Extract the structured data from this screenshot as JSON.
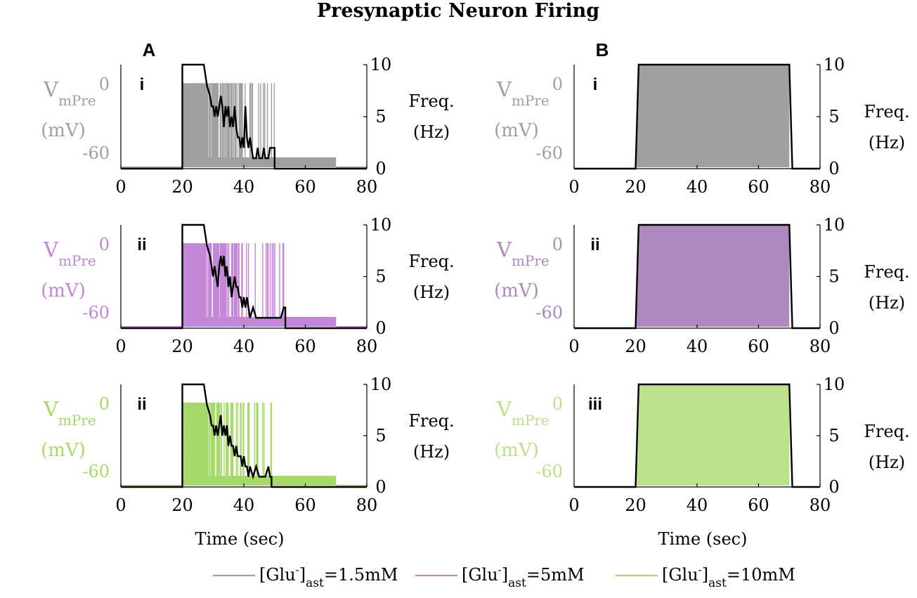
{
  "title": "Presynaptic Neuron Firing",
  "columns": [
    {
      "label": "A"
    },
    {
      "label": "B"
    }
  ],
  "colors": {
    "gray": "#a0a0a0",
    "purple": "#c486d6",
    "purple_fill": "#b088c0",
    "green": "#a6d96a",
    "green_fill": "#bde08c",
    "black": "#000000"
  },
  "axis_text": {
    "xlabel": "Time (sec)",
    "left_label_main": "V",
    "left_label_sub": "mPre",
    "left_unit": "(mV)",
    "right_label": "Freq.",
    "right_unit": "(Hz)"
  },
  "legend": [
    {
      "prefix": "[Glu",
      "sup": "-",
      "close": "]",
      "sub": "ast",
      "value": "=1.5mM",
      "color": "#a0a0a0"
    },
    {
      "prefix": "[Glu",
      "sup": "-",
      "close": "]",
      "sub": "ast",
      "value": "=5mM",
      "color": "#c486d6"
    },
    {
      "prefix": "[Glu",
      "sup": "-",
      "close": "]",
      "sub": "ast",
      "value": "=10mM",
      "color": "#a6d96a"
    }
  ],
  "chart_data": [
    {
      "panel": "A",
      "row_label": "i",
      "type": "line",
      "color": "#a0a0a0",
      "xlim": [
        0,
        80
      ],
      "xticks": [
        0,
        20,
        40,
        60,
        80
      ],
      "vm_ticks": [
        0,
        -60
      ],
      "freq_ylim": [
        0,
        10
      ],
      "freq_ticks": [
        0,
        5,
        10
      ],
      "stim": [
        20,
        70
      ],
      "spike_end": 50,
      "frequency": {
        "x": [
          0,
          20,
          20,
          27,
          28,
          29,
          29.5,
          30,
          30.5,
          31,
          31.5,
          32,
          32.5,
          33,
          33.5,
          34,
          34.5,
          35,
          35.5,
          36,
          36.5,
          37,
          37.5,
          38,
          38.5,
          39,
          39.5,
          40,
          40.5,
          41,
          41.5,
          42,
          42.5,
          43,
          44,
          44.5,
          45,
          46,
          46.5,
          47,
          48,
          48.5,
          50,
          50,
          80
        ],
        "y": [
          0,
          0,
          10,
          10,
          8,
          7,
          6,
          6,
          5,
          6,
          5,
          6,
          7,
          6,
          4,
          6,
          5,
          6,
          4,
          5,
          4,
          6,
          4,
          3,
          3,
          2,
          3,
          2,
          6,
          3,
          2,
          3,
          2,
          1,
          1,
          2,
          1,
          1,
          2,
          1,
          1,
          2,
          2,
          0,
          0
        ]
      }
    },
    {
      "panel": "A",
      "row_label": "ii",
      "type": "line",
      "color": "#c486d6",
      "xlim": [
        0,
        80
      ],
      "xticks": [
        0,
        20,
        40,
        60,
        80
      ],
      "vm_ticks": [
        0,
        -60
      ],
      "freq_ylim": [
        0,
        10
      ],
      "freq_ticks": [
        0,
        5,
        10
      ],
      "stim": [
        20,
        70
      ],
      "spike_end": 53,
      "frequency": {
        "x": [
          0,
          20,
          20,
          27,
          28,
          29,
          29.5,
          30,
          30.5,
          31,
          31.5,
          32,
          32.5,
          33,
          33.5,
          34,
          34.5,
          35,
          35.5,
          36,
          36.5,
          37,
          37.5,
          38,
          38.5,
          39,
          39.5,
          40,
          40.5,
          41,
          41.5,
          42,
          43,
          44,
          45,
          46,
          47,
          48,
          49,
          50,
          52,
          53,
          53.5,
          53.5,
          80
        ],
        "y": [
          0,
          0,
          10,
          10,
          8,
          7,
          6,
          5,
          6,
          5,
          4,
          6,
          7,
          6,
          7,
          5,
          6,
          4,
          5,
          3,
          4,
          5,
          4,
          4,
          3,
          3,
          2,
          3,
          2,
          3,
          2,
          1,
          2,
          1,
          1,
          1,
          1,
          1,
          1,
          1,
          1,
          2,
          2,
          0,
          0
        ]
      }
    },
    {
      "panel": "A",
      "row_label": "ii",
      "type": "line",
      "color": "#a6d96a",
      "xlim": [
        0,
        80
      ],
      "xticks": [
        0,
        20,
        40,
        60,
        80
      ],
      "vm_ticks": [
        0,
        -60
      ],
      "freq_ylim": [
        0,
        10
      ],
      "freq_ticks": [
        0,
        5,
        10
      ],
      "stim": [
        20,
        70
      ],
      "spike_end": 49,
      "frequency": {
        "x": [
          0,
          20,
          20,
          27,
          28,
          29,
          29.5,
          30,
          30.5,
          31,
          31.5,
          32,
          32.5,
          33,
          33.5,
          34,
          34.5,
          35,
          35.5,
          36,
          36.5,
          37,
          37.5,
          38,
          38.5,
          39,
          39.5,
          40,
          40.5,
          41,
          41.5,
          42,
          43,
          44,
          45,
          46,
          47,
          48,
          48.5,
          49,
          49,
          80
        ],
        "y": [
          0,
          0,
          10,
          10,
          8,
          7,
          6,
          6,
          5,
          6,
          5,
          6,
          7,
          5,
          6,
          5,
          6,
          4,
          5,
          4,
          4,
          3,
          4,
          3,
          3,
          3,
          2,
          3,
          2,
          2,
          1,
          2,
          1,
          2,
          1,
          1,
          1,
          2,
          1,
          1,
          0,
          0
        ]
      }
    },
    {
      "panel": "B",
      "row_label": "i",
      "type": "line",
      "color": "#a0a0a0",
      "xlim": [
        0,
        80
      ],
      "xticks": [
        0,
        20,
        40,
        60,
        80
      ],
      "vm_ticks": [
        0,
        -60
      ],
      "freq_ylim": [
        0,
        10
      ],
      "freq_ticks": [
        0,
        5,
        10
      ],
      "stim": [
        20,
        70
      ],
      "frequency": {
        "x": [
          0,
          20,
          21,
          70,
          71,
          80
        ],
        "y": [
          0,
          0,
          10,
          10,
          0,
          0
        ]
      }
    },
    {
      "panel": "B",
      "row_label": "ii",
      "type": "line",
      "color": "#b088c0",
      "xlim": [
        0,
        80
      ],
      "xticks": [
        0,
        20,
        40,
        60,
        80
      ],
      "vm_ticks": [
        0,
        -60
      ],
      "freq_ylim": [
        0,
        10
      ],
      "freq_ticks": [
        0,
        5,
        10
      ],
      "stim": [
        20,
        70
      ],
      "frequency": {
        "x": [
          0,
          20,
          21,
          70,
          71,
          80
        ],
        "y": [
          0,
          0,
          10,
          10,
          0,
          0
        ]
      }
    },
    {
      "panel": "B",
      "row_label": "iii",
      "type": "line",
      "color": "#bde08c",
      "xlim": [
        0,
        80
      ],
      "xticks": [
        0,
        20,
        40,
        60,
        80
      ],
      "vm_ticks": [
        0,
        -60
      ],
      "freq_ylim": [
        0,
        10
      ],
      "freq_ticks": [
        0,
        5,
        10
      ],
      "stim": [
        20,
        70
      ],
      "frequency": {
        "x": [
          0,
          20,
          21,
          70,
          71,
          80
        ],
        "y": [
          0,
          0,
          10,
          10,
          0,
          0
        ]
      }
    }
  ]
}
